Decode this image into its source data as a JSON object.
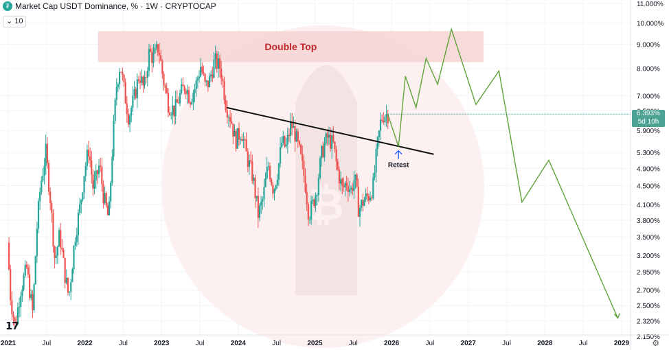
{
  "header": {
    "symbol_title": "Market Cap USDT Dominance, % · 1W · CRYPTOCAP",
    "interval_value": "10"
  },
  "price_tag": {
    "value": "6.393%",
    "countdown": "5d 10h"
  },
  "colors": {
    "up": "#26a69a",
    "down": "#ef5350",
    "projection": "#5fa33a",
    "trendline": "#111111",
    "zone_fill": "#f6d3d3",
    "zone_text": "#c2262b",
    "retest_arrow": "#2962ff",
    "price_tag": "#4da393"
  },
  "icons": {
    "header": "tether-logo-icon",
    "settings": "gear-icon",
    "tv": "tradingview-logo-icon"
  },
  "tv_logo_text": "17",
  "chart_data": {
    "type": "candlestick",
    "title": "Market Cap USDT Dominance, %",
    "y_scale": "log",
    "y_ticks": [
      "11.000%",
      "10.000%",
      "9.000%",
      "8.000%",
      "7.000%",
      "6.500%",
      "5.900%",
      "5.300%",
      "4.900%",
      "4.500%",
      "4.100%",
      "3.800%",
      "3.500%",
      "3.200%",
      "2.950%",
      "2.700%",
      "2.500%",
      "2.320%",
      "2.150%"
    ],
    "x_ticks": [
      {
        "label": "2021",
        "t": 2021.0
      },
      {
        "label": "Jul",
        "t": 2021.5
      },
      {
        "label": "2022",
        "t": 2022.0
      },
      {
        "label": "Jul",
        "t": 2022.5
      },
      {
        "label": "2023",
        "t": 2023.0
      },
      {
        "label": "Jul",
        "t": 2023.5
      },
      {
        "label": "2024",
        "t": 2024.0
      },
      {
        "label": "Jul",
        "t": 2024.5
      },
      {
        "label": "2025",
        "t": 2025.0
      },
      {
        "label": "Jul",
        "t": 2025.5
      },
      {
        "label": "2026",
        "t": 2026.0
      },
      {
        "label": "Jul",
        "t": 2026.5
      },
      {
        "label": "2027",
        "t": 2027.0
      },
      {
        "label": "Jul",
        "t": 2027.5
      },
      {
        "label": "2028",
        "t": 2028.0
      },
      {
        "label": "Jul",
        "t": 2028.5
      },
      {
        "label": "2029",
        "t": 2029.0
      }
    ],
    "price_path": [
      [
        2021.0,
        3.4
      ],
      [
        2021.04,
        2.6
      ],
      [
        2021.1,
        2.25
      ],
      [
        2021.17,
        2.7
      ],
      [
        2021.25,
        3.0
      ],
      [
        2021.33,
        2.4
      ],
      [
        2021.38,
        3.6
      ],
      [
        2021.43,
        4.5
      ],
      [
        2021.5,
        5.3
      ],
      [
        2021.56,
        4.2
      ],
      [
        2021.62,
        3.1
      ],
      [
        2021.68,
        3.55
      ],
      [
        2021.75,
        2.9
      ],
      [
        2021.8,
        2.6
      ],
      [
        2021.88,
        3.5
      ],
      [
        2021.95,
        4.1
      ],
      [
        2022.0,
        4.8
      ],
      [
        2022.06,
        5.4
      ],
      [
        2022.12,
        4.4
      ],
      [
        2022.2,
        5.0
      ],
      [
        2022.25,
        4.3
      ],
      [
        2022.32,
        3.8
      ],
      [
        2022.37,
        5.5
      ],
      [
        2022.42,
        7.3
      ],
      [
        2022.47,
        8.2
      ],
      [
        2022.52,
        7.2
      ],
      [
        2022.58,
        6.3
      ],
      [
        2022.65,
        6.9
      ],
      [
        2022.72,
        7.8
      ],
      [
        2022.78,
        7.2
      ],
      [
        2022.85,
        8.7
      ],
      [
        2022.9,
        8.4
      ],
      [
        2022.97,
        8.9
      ],
      [
        2023.03,
        7.6
      ],
      [
        2023.1,
        6.7
      ],
      [
        2023.18,
        6.5
      ],
      [
        2023.25,
        7.0
      ],
      [
        2023.32,
        7.4
      ],
      [
        2023.38,
        6.9
      ],
      [
        2023.45,
        7.3
      ],
      [
        2023.52,
        8.1
      ],
      [
        2023.58,
        7.3
      ],
      [
        2023.63,
        7.5
      ],
      [
        2023.7,
        8.3
      ],
      [
        2023.78,
        8.0
      ],
      [
        2023.85,
        6.7
      ],
      [
        2023.92,
        6.2
      ],
      [
        2023.97,
        5.6
      ],
      [
        2024.05,
        5.9
      ],
      [
        2024.12,
        5.2
      ],
      [
        2024.2,
        4.7
      ],
      [
        2024.27,
        3.9
      ],
      [
        2024.33,
        4.2
      ],
      [
        2024.4,
        5.0
      ],
      [
        2024.47,
        4.4
      ],
      [
        2024.53,
        4.9
      ],
      [
        2024.58,
        5.6
      ],
      [
        2024.63,
        5.4
      ],
      [
        2024.7,
        6.1
      ],
      [
        2024.75,
        5.8
      ],
      [
        2024.82,
        5.2
      ],
      [
        2024.88,
        4.6
      ],
      [
        2024.93,
        3.9
      ],
      [
        2024.98,
        4.1
      ],
      [
        2025.03,
        4.4
      ],
      [
        2025.1,
        5.3
      ],
      [
        2025.17,
        5.7
      ],
      [
        2025.25,
        5.5
      ],
      [
        2025.3,
        4.9
      ],
      [
        2025.37,
        4.4
      ],
      [
        2025.42,
        4.6
      ],
      [
        2025.48,
        4.4
      ],
      [
        2025.53,
        4.7
      ],
      [
        2025.58,
        4.0
      ],
      [
        2025.65,
        4.2
      ],
      [
        2025.72,
        4.3
      ],
      [
        2025.77,
        4.5
      ],
      [
        2025.82,
        5.4
      ],
      [
        2025.87,
        6.2
      ],
      [
        2025.91,
        6.4
      ],
      [
        2025.95,
        6.39
      ]
    ],
    "projection": [
      [
        2026.09,
        5.45
      ],
      [
        2026.18,
        7.7
      ],
      [
        2026.32,
        6.6
      ],
      [
        2026.45,
        8.4
      ],
      [
        2026.6,
        7.4
      ],
      [
        2026.78,
        9.7
      ],
      [
        2027.1,
        6.7
      ],
      [
        2027.4,
        7.9
      ],
      [
        2027.7,
        4.15
      ],
      [
        2028.05,
        5.1
      ],
      [
        2028.95,
        2.35
      ]
    ],
    "trendline": [
      [
        2023.85,
        6.6
      ],
      [
        2026.55,
        5.25
      ]
    ],
    "zone": {
      "label": "Double Top",
      "t0": 2022.17,
      "t1": 2027.2,
      "p0": 8.25,
      "p1": 9.6
    },
    "annotation": {
      "label": "Retest",
      "t": 2026.09,
      "p": 5.45
    },
    "last_price": 6.393
  }
}
